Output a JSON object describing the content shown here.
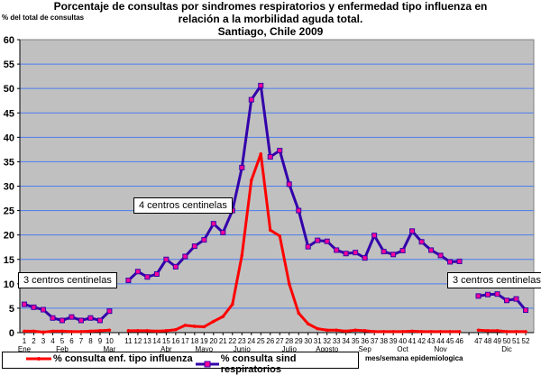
{
  "chart_data": {
    "type": "line",
    "title": [
      "Porcentaje de consultas por sindromes respiratorios y  enfermedad tipo influenza en",
      "relación a la morbilidad aguda total.",
      "Santiago, Chile 2009"
    ],
    "ylabel": "% del total de consultas",
    "xlabel": "mes/semana epidemiologica",
    "ylim": [
      0,
      60
    ],
    "yticks": [
      "0",
      "5",
      "10",
      "15",
      "20",
      "25",
      "30",
      "35",
      "40",
      "45",
      "50",
      "55",
      "60"
    ],
    "grid": true,
    "legend_position": "bottom",
    "x_tick_labels": [
      "1",
      "2",
      "3",
      "4",
      "5",
      "6",
      "7",
      "8",
      "9",
      "10",
      "",
      "11",
      "12",
      "13",
      "14",
      "15",
      "16",
      "17",
      "18",
      "19",
      "20",
      "21",
      "22",
      "23",
      "24",
      "25",
      "26",
      "27",
      "28",
      "29",
      "30",
      "31",
      "32",
      "33",
      "34",
      "35",
      "36",
      "37",
      "38",
      "39",
      "40",
      "41",
      "42",
      "43",
      "44",
      "45",
      "46",
      "",
      "47",
      "48",
      "49",
      "50",
      "51",
      "52"
    ],
    "month_labels": [
      {
        "label": "Ene",
        "at": 1
      },
      {
        "label": "Feb",
        "at": 5
      },
      {
        "label": "Mar",
        "at": 10
      },
      {
        "label": "Abr",
        "at": 15
      },
      {
        "label": "Mayo",
        "at": 19
      },
      {
        "label": "Junio",
        "at": 23
      },
      {
        "label": "Julio",
        "at": 28
      },
      {
        "label": "Agosto",
        "at": 32
      },
      {
        "label": "Sep",
        "at": 36
      },
      {
        "label": "Oct",
        "at": 40
      },
      {
        "label": "Nov",
        "at": 44
      },
      {
        "label": "Dic",
        "at": 50
      }
    ],
    "series": [
      {
        "name": "% consulta enf. tipo influenza",
        "color": "#ff0000",
        "values": [
          0.3,
          0.3,
          0.1,
          0.3,
          0.3,
          0.2,
          0.2,
          0.3,
          0.4,
          0.5,
          null,
          0.4,
          0.4,
          0.4,
          0.3,
          0.4,
          0.6,
          1.5,
          1.3,
          1.2,
          2.3,
          3.3,
          5.8,
          15.8,
          31.2,
          36.6,
          21.0,
          19.8,
          10.0,
          4.0,
          1.8,
          0.8,
          0.5,
          0.5,
          0.3,
          0.5,
          0.4,
          0.2,
          0.2,
          0.2,
          0.2,
          0.3,
          0.2,
          0.2,
          0.2,
          0.2,
          0.2,
          null,
          0.5,
          0.4,
          0.4,
          0.2,
          0.2,
          0.2
        ]
      },
      {
        "name": "% consulta sind respiratorios",
        "color": "#3300aa",
        "marker_color": "#ff0099",
        "values": [
          5.8,
          5.2,
          4.7,
          3.0,
          2.5,
          3.2,
          2.5,
          3.0,
          2.5,
          4.4,
          null,
          10.7,
          12.5,
          11.4,
          12.0,
          15.0,
          13.5,
          15.6,
          17.7,
          19.0,
          22.3,
          20.5,
          25.0,
          33.8,
          47.7,
          50.6,
          36.0,
          37.3,
          30.4,
          25.0,
          17.6,
          18.9,
          18.7,
          16.9,
          16.2,
          16.4,
          15.3,
          19.9,
          16.6,
          16.0,
          16.8,
          20.8,
          18.6,
          16.9,
          15.8,
          14.5,
          14.6,
          null,
          7.5,
          7.8,
          7.9,
          6.6,
          6.9,
          4.6
        ]
      }
    ],
    "annotations": [
      "3 centros centinelas",
      "4 centros centinelas",
      "3 centros centinelas"
    ]
  }
}
